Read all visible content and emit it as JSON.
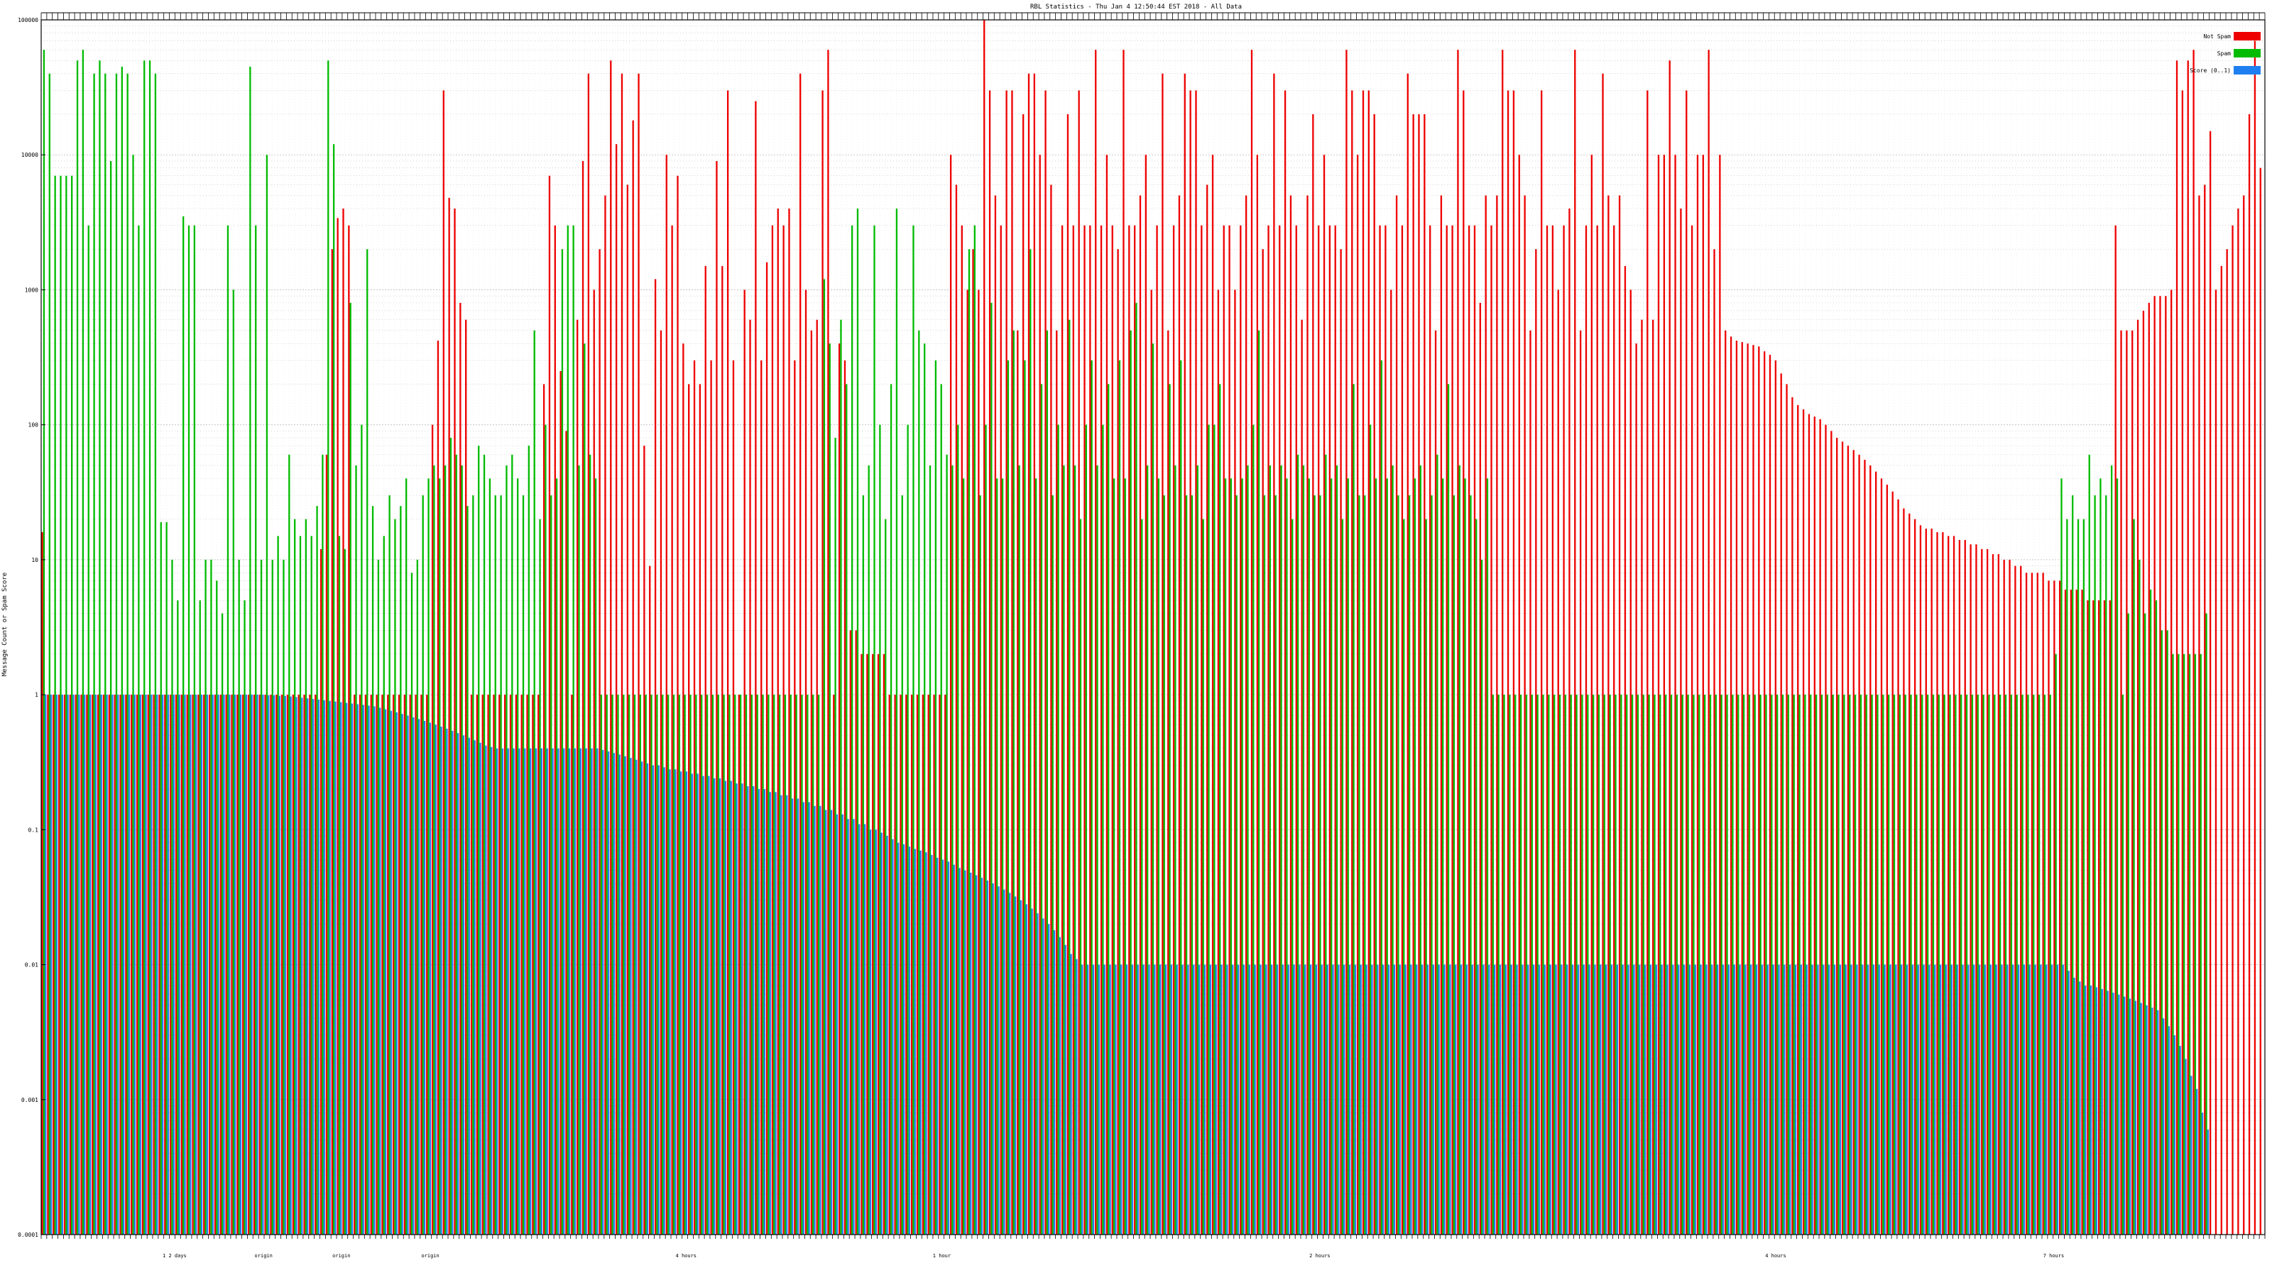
{
  "colors": {
    "not_spam": "#ee0000",
    "spam": "#00bb00",
    "score": "#1e7ff0",
    "grid": "#bbbbbb",
    "frame": "#000000"
  },
  "chart_data": {
    "type": "bar",
    "title": "RBL Statistics - Thu Jan  4 12:50:44 EST 2018 - All Data",
    "ylabel": "Message Count or Spam Score",
    "xlabel": "",
    "yscale": "log",
    "ylim": [
      0.0001,
      100000
    ],
    "yticks": [
      {
        "value": 100000,
        "label": "100000"
      },
      {
        "value": 10000,
        "label": "10000"
      },
      {
        "value": 1000,
        "label": "1000"
      },
      {
        "value": 100,
        "label": "100"
      },
      {
        "value": 10,
        "label": "10"
      },
      {
        "value": 1,
        "label": "1"
      },
      {
        "value": 0.1,
        "label": "0.1"
      },
      {
        "value": 0.01,
        "label": "0.01"
      },
      {
        "value": 0.001,
        "label": "0.001"
      },
      {
        "value": 0.0001,
        "label": "0.0001"
      }
    ],
    "grid": true,
    "legend_position": "top-right",
    "legend": [
      {
        "key": "not_spam",
        "label": "Not Spam"
      },
      {
        "key": "spam",
        "label": "Spam"
      },
      {
        "key": "score",
        "label": "Score (0..1)"
      }
    ],
    "x_labels_visible": [
      "1 2 days",
      "origin",
      "origin",
      "origin",
      "4 hours",
      "1 hour",
      "2 hours",
      "4 hours",
      "7 hours"
    ],
    "series": [
      {
        "key": "not_spam",
        "values": [
          16,
          1,
          1,
          1,
          1,
          1,
          1,
          1,
          1,
          1,
          1,
          1,
          1,
          1,
          1,
          1,
          1,
          1,
          1,
          1,
          1,
          1,
          1,
          1,
          1,
          1,
          1,
          1,
          1,
          1,
          1,
          1,
          1,
          1,
          1,
          1,
          1,
          1,
          1,
          1,
          1,
          1,
          1,
          1,
          1,
          1,
          1,
          1,
          1,
          1,
          12,
          60,
          2000,
          3400,
          4000,
          3000,
          1,
          1,
          1,
          1,
          1,
          1,
          1,
          1,
          1,
          1,
          1,
          1,
          1,
          1,
          100,
          420,
          30000,
          4800,
          4000,
          800,
          600,
          1,
          1,
          1,
          1,
          1,
          1,
          1,
          1,
          1,
          1,
          1,
          1,
          1,
          200,
          7000,
          3000,
          250,
          90,
          1,
          600,
          9000,
          40000,
          1000,
          2000,
          5000,
          50000,
          12000,
          40000,
          6000,
          18000,
          40000,
          70,
          9,
          1200,
          500,
          10000,
          3000,
          7000,
          400,
          200,
          300,
          200,
          1500,
          300,
          9000,
          1500,
          30000,
          300,
          1,
          1000,
          600,
          25000,
          300,
          1600,
          3000,
          4000,
          3000,
          4000,
          300,
          40000,
          1000,
          500,
          600,
          30000,
          60000,
          1,
          400,
          300,
          3,
          3,
          2,
          2,
          2,
          2,
          2,
          1,
          1,
          1,
          1,
          1,
          1,
          1,
          1,
          1,
          1,
          1,
          10000,
          6000,
          3000,
          1000,
          2000,
          1000,
          100000,
          30000,
          5000,
          3000,
          30000,
          30000,
          500,
          20000,
          40000,
          40000,
          10000,
          30000,
          6000,
          500,
          3000,
          20000,
          3000,
          30000,
          3000,
          3000,
          60000,
          3000,
          10000,
          3000,
          2000,
          60000,
          3000,
          3000,
          5000,
          10000,
          1000,
          3000,
          40000,
          500,
          3000,
          5000,
          40000,
          30000,
          30000,
          3000,
          6000,
          10000,
          1000,
          3000,
          3000,
          1000,
          3000,
          5000,
          60000,
          10000,
          2000,
          3000,
          40000,
          3000,
          30000,
          5000,
          3000,
          600,
          5000,
          20000,
          3000,
          10000,
          3000,
          3000,
          2000,
          60000,
          30000,
          10000,
          30000,
          30000,
          20000,
          3000,
          3000,
          1000,
          5000,
          3000,
          40000,
          20000,
          20000,
          20000,
          3000,
          500,
          5000,
          3000,
          3000,
          60000,
          30000,
          3000,
          3000,
          800,
          5000,
          3000,
          5000,
          60000,
          30000,
          30000,
          10000,
          5000,
          500,
          2000,
          30000,
          3000,
          3000,
          1000,
          3000,
          4000,
          60000,
          500,
          3000,
          10000,
          3000,
          40000,
          5000,
          3000,
          5000,
          1500,
          1000,
          400,
          600,
          30000,
          600,
          10000,
          10000,
          50000,
          10000,
          4000,
          30000,
          3000,
          10000,
          10000,
          60000,
          2000,
          10000,
          500,
          450,
          420,
          410,
          400,
          390,
          380,
          350,
          330,
          300,
          240,
          200,
          160,
          140,
          130,
          120,
          115,
          110,
          100,
          90,
          80,
          75,
          70,
          65,
          60,
          55,
          50,
          45,
          40,
          36,
          32,
          28,
          24,
          22,
          20,
          18,
          17,
          17,
          16,
          16,
          15,
          15,
          14,
          14,
          13,
          13,
          12,
          12,
          11,
          11,
          10,
          10,
          9,
          9,
          8,
          8,
          8,
          8,
          7,
          7,
          7,
          6,
          6,
          6,
          6,
          5,
          5,
          5,
          5,
          5,
          3000,
          500,
          500,
          500,
          600,
          700,
          800,
          900,
          900,
          900,
          1000,
          50000,
          30000,
          50000,
          60000,
          5000,
          6000,
          15000,
          1000,
          1500,
          2000,
          3000,
          4000,
          5000,
          20000,
          70000,
          8000
        ]
      },
      {
        "key": "spam",
        "values": [
          60000,
          40000,
          7000,
          7000,
          7000,
          7000,
          50000,
          60000,
          3000,
          40000,
          50000,
          40000,
          9000,
          40000,
          45000,
          40000,
          10000,
          3000,
          50000,
          50000,
          40000,
          19,
          19,
          10,
          5,
          3500,
          3000,
          3000,
          5,
          10,
          10,
          7,
          4,
          3000,
          1000,
          10,
          5,
          45000,
          3000,
          10,
          10000,
          10,
          15,
          10,
          60,
          20,
          15,
          20,
          15,
          25,
          60,
          50000,
          12000,
          15,
          12,
          800,
          50,
          100,
          2000,
          25,
          10,
          15,
          30,
          20,
          25,
          40,
          8,
          10,
          30,
          40,
          50,
          40,
          50,
          80,
          60,
          50,
          25,
          30,
          70,
          60,
          40,
          30,
          30,
          50,
          60,
          40,
          30,
          70,
          500,
          20,
          100,
          30,
          40,
          2000,
          3000,
          3000,
          50,
          400,
          60,
          40,
          1,
          1,
          1,
          1,
          1,
          1,
          1,
          1,
          1,
          1,
          1,
          1,
          1,
          1,
          1,
          1,
          1,
          1,
          1,
          1,
          1,
          1,
          1,
          1,
          1,
          1,
          1,
          1,
          1,
          1,
          1,
          1,
          1,
          1,
          1,
          1,
          1,
          1,
          1,
          1,
          1200,
          400,
          80,
          600,
          200,
          3000,
          4000,
          30,
          50,
          3000,
          100,
          20,
          200,
          4000,
          30,
          100,
          3000,
          500,
          400,
          50,
          300,
          200,
          60,
          50,
          100,
          40,
          2000,
          3000,
          30,
          100,
          800,
          40,
          40,
          300,
          500,
          50,
          300,
          2000,
          40,
          200,
          500,
          30,
          100,
          50,
          600,
          50,
          20,
          100,
          300,
          50,
          100,
          200,
          40,
          300,
          40,
          500,
          800,
          20,
          50,
          400,
          40,
          30,
          200,
          50,
          300,
          30,
          30,
          50,
          20,
          100,
          100,
          200,
          40,
          40,
          30,
          40,
          50,
          100,
          500,
          30,
          50,
          30,
          50,
          40,
          20,
          60,
          50,
          40,
          30,
          30,
          60,
          40,
          50,
          20,
          40,
          200,
          30,
          30,
          100,
          40,
          300,
          40,
          50,
          30,
          20,
          30,
          40,
          50,
          20,
          30,
          60,
          40,
          200,
          30,
          50,
          40,
          30,
          20,
          10,
          40,
          1,
          1,
          1,
          1,
          1,
          1,
          1,
          1,
          1,
          1,
          1,
          1,
          1,
          1,
          1,
          1,
          1,
          1,
          1,
          1,
          1,
          1,
          1,
          1,
          1,
          1,
          1,
          1,
          1,
          1,
          1,
          1,
          1,
          1,
          1,
          1,
          1,
          1,
          1,
          1,
          1,
          1,
          1,
          1,
          1,
          1,
          1,
          1,
          1,
          1,
          1,
          1,
          1,
          1,
          1,
          1,
          1,
          1,
          1,
          1,
          1,
          1,
          1,
          1,
          1,
          1,
          1,
          1,
          1,
          1,
          1,
          1,
          1,
          1,
          1,
          1,
          1,
          1,
          1,
          1,
          1,
          1,
          1,
          1,
          1,
          1,
          1,
          1,
          1,
          1,
          1,
          1,
          1,
          1,
          1,
          1,
          1,
          1,
          1,
          1,
          1,
          2,
          40,
          20,
          30,
          20,
          20,
          60,
          30,
          40,
          30,
          50,
          40,
          1,
          4,
          20,
          10,
          4,
          6,
          5,
          3,
          3,
          2,
          2,
          2,
          2,
          2,
          2,
          4
        ]
      },
      {
        "key": "score",
        "values": [
          1,
          1,
          1,
          1,
          1,
          1,
          1,
          1,
          1,
          1,
          1,
          1,
          1,
          1,
          1,
          1,
          1,
          1,
          1,
          1,
          1,
          1,
          1,
          1,
          1,
          1,
          1,
          1,
          1,
          1,
          1,
          1,
          1,
          1,
          1,
          1,
          1,
          1,
          1,
          1,
          0.99,
          0.99,
          0.98,
          0.98,
          0.97,
          0.96,
          0.95,
          0.94,
          0.93,
          0.92,
          0.91,
          0.9,
          0.89,
          0.88,
          0.87,
          0.86,
          0.85,
          0.84,
          0.83,
          0.82,
          0.8,
          0.78,
          0.76,
          0.74,
          0.72,
          0.7,
          0.68,
          0.66,
          0.64,
          0.62,
          0.6,
          0.58,
          0.56,
          0.54,
          0.52,
          0.5,
          0.48,
          0.46,
          0.44,
          0.42,
          0.41,
          0.4,
          0.4,
          0.4,
          0.4,
          0.4,
          0.4,
          0.4,
          0.4,
          0.4,
          0.4,
          0.4,
          0.4,
          0.4,
          0.4,
          0.4,
          0.4,
          0.4,
          0.4,
          0.4,
          0.39,
          0.38,
          0.37,
          0.36,
          0.35,
          0.34,
          0.33,
          0.32,
          0.31,
          0.3,
          0.3,
          0.29,
          0.28,
          0.28,
          0.27,
          0.27,
          0.26,
          0.26,
          0.25,
          0.25,
          0.24,
          0.24,
          0.23,
          0.23,
          0.22,
          0.22,
          0.21,
          0.21,
          0.2,
          0.2,
          0.19,
          0.19,
          0.18,
          0.18,
          0.17,
          0.17,
          0.16,
          0.16,
          0.15,
          0.15,
          0.14,
          0.14,
          0.13,
          0.13,
          0.12,
          0.12,
          0.11,
          0.11,
          0.1,
          0.1,
          0.095,
          0.09,
          0.085,
          0.08,
          0.078,
          0.075,
          0.072,
          0.07,
          0.068,
          0.065,
          0.062,
          0.06,
          0.058,
          0.055,
          0.052,
          0.05,
          0.048,
          0.046,
          0.044,
          0.042,
          0.04,
          0.038,
          0.036,
          0.034,
          0.032,
          0.03,
          0.028,
          0.026,
          0.024,
          0.022,
          0.02,
          0.018,
          0.016,
          0.014,
          0.012,
          0.011,
          0.01,
          0.01,
          0.01,
          0.01,
          0.01,
          0.01,
          0.01,
          0.01,
          0.01,
          0.01,
          0.01,
          0.01,
          0.01,
          0.01,
          0.01,
          0.01,
          0.01,
          0.01,
          0.01,
          0.01,
          0.01,
          0.01,
          0.01,
          0.01,
          0.01,
          0.01,
          0.01,
          0.01,
          0.01,
          0.01,
          0.01,
          0.01,
          0.01,
          0.01,
          0.01,
          0.01,
          0.01,
          0.01,
          0.01,
          0.01,
          0.01,
          0.01,
          0.01,
          0.01,
          0.01,
          0.01,
          0.01,
          0.01,
          0.01,
          0.01,
          0.01,
          0.01,
          0.01,
          0.01,
          0.01,
          0.01,
          0.01,
          0.01,
          0.01,
          0.01,
          0.01,
          0.01,
          0.01,
          0.01,
          0.01,
          0.01,
          0.01,
          0.01,
          0.01,
          0.01,
          0.01,
          0.01,
          0.01,
          0.01,
          0.01,
          0.01,
          0.01,
          0.01,
          0.01,
          0.01,
          0.01,
          0.01,
          0.01,
          0.01,
          0.01,
          0.01,
          0.01,
          0.01,
          0.01,
          0.01,
          0.01,
          0.01,
          0.01,
          0.01,
          0.01,
          0.01,
          0.01,
          0.01,
          0.01,
          0.01,
          0.01,
          0.01,
          0.01,
          0.01,
          0.01,
          0.01,
          0.01,
          0.01,
          0.01,
          0.01,
          0.01,
          0.01,
          0.01,
          0.01,
          0.01,
          0.01,
          0.01,
          0.01,
          0.01,
          0.01,
          0.01,
          0.01,
          0.01,
          0.01,
          0.01,
          0.01,
          0.01,
          0.01,
          0.01,
          0.01,
          0.01,
          0.01,
          0.01,
          0.01,
          0.01,
          0.01,
          0.01,
          0.01,
          0.01,
          0.01,
          0.01,
          0.01,
          0.01,
          0.01,
          0.01,
          0.01,
          0.01,
          0.01,
          0.01,
          0.01,
          0.01,
          0.01,
          0.01,
          0.01,
          0.01,
          0.01,
          0.01,
          0.01,
          0.01,
          0.01,
          0.01,
          0.01,
          0.01,
          0.01,
          0.01,
          0.01,
          0.01,
          0.01,
          0.01,
          0.01,
          0.01,
          0.01,
          0.01,
          0.01,
          0.01,
          0.01,
          0.01,
          0.009,
          0.008,
          0.0075,
          0.007,
          0.007,
          0.0068,
          0.0066,
          0.0064,
          0.0062,
          0.006,
          0.0058,
          0.0056,
          0.0054,
          0.0052,
          0.005,
          0.0048,
          0.0046,
          0.004,
          0.0035,
          0.003,
          0.0025,
          0.002,
          0.0015,
          0.0012,
          0.0008,
          0.0006
        ]
      }
    ]
  }
}
